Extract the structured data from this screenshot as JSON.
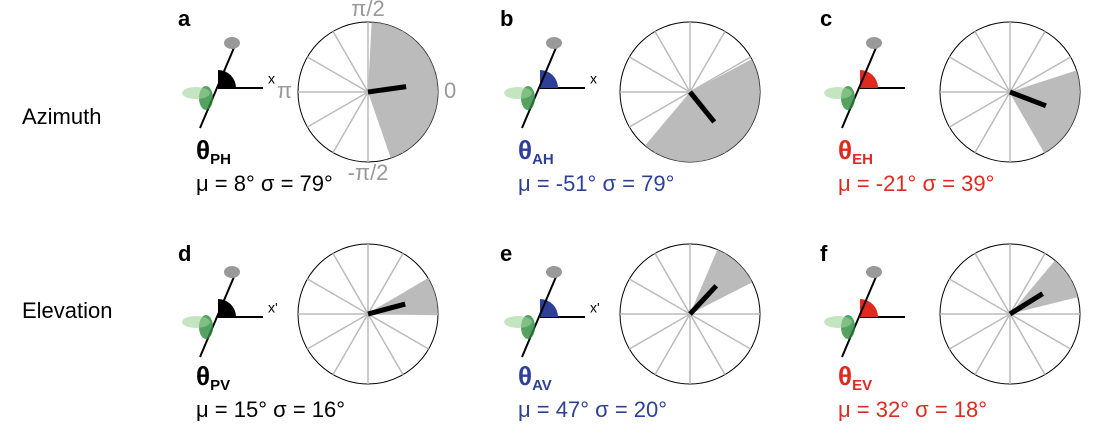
{
  "rows": [
    "Azimuth",
    "Elevation"
  ],
  "polar_labels": {
    "top": "π/2",
    "right": "0",
    "left": "π",
    "bottom": "-π/2"
  },
  "panels": [
    {
      "letter": "a",
      "symbol": "θ",
      "subscript": "PH",
      "color": "#000000",
      "axis_label": "x",
      "mu": 8,
      "sigma": 79,
      "stats": "μ = 8° σ = 79°"
    },
    {
      "letter": "b",
      "symbol": "θ",
      "subscript": "AH",
      "color": "#2e3f98",
      "axis_label": "x",
      "mu": -51,
      "sigma": 79,
      "stats": "μ = -51° σ = 79°"
    },
    {
      "letter": "c",
      "symbol": "θ",
      "subscript": "EH",
      "color": "#e0291f",
      "axis_label": "",
      "mu": -21,
      "sigma": 39,
      "stats": "μ = -21° σ = 39°"
    },
    {
      "letter": "d",
      "symbol": "θ",
      "subscript": "PV",
      "color": "#000000",
      "axis_label": "x'",
      "mu": 15,
      "sigma": 16,
      "stats": "μ = 15° σ = 16°"
    },
    {
      "letter": "e",
      "symbol": "θ",
      "subscript": "AV",
      "color": "#2e3f98",
      "axis_label": "x'",
      "mu": 47,
      "sigma": 20,
      "stats": "μ = 47° σ = 20°"
    },
    {
      "letter": "f",
      "symbol": "θ",
      "subscript": "EV",
      "color": "#e0291f",
      "axis_label": "",
      "mu": 32,
      "sigma": 18,
      "stats": "μ = 32° σ = 18°"
    }
  ]
}
